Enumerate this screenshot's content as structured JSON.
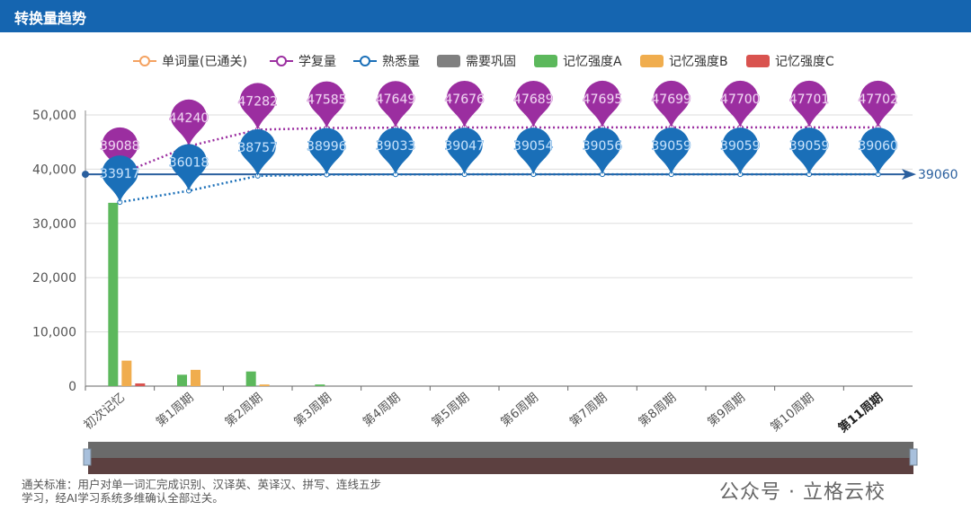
{
  "chart_data": {
    "type": "line-bar",
    "title": "转换量趋势",
    "categories": [
      "初次记忆",
      "第1周期",
      "第2周期",
      "第3周期",
      "第4周期",
      "第5周期",
      "第6周期",
      "第7周期",
      "第8周期",
      "第9周期",
      "第10周期",
      "第11周期"
    ],
    "series": [
      {
        "name": "单词量(已通关)",
        "kind": "line",
        "color": "#f4a261",
        "values": [
          null,
          null,
          null,
          null,
          null,
          null,
          null,
          null,
          null,
          null,
          null,
          null
        ]
      },
      {
        "name": "学复量",
        "kind": "line",
        "color": "#9b2ea0",
        "pins": true,
        "values": [
          39088,
          44240,
          47282,
          47585,
          47649,
          47676,
          47689,
          47695,
          47699,
          47700,
          47701,
          47702
        ]
      },
      {
        "name": "熟悉量",
        "kind": "line",
        "color": "#1a6fb8",
        "pins": true,
        "values": [
          33917,
          36018,
          38757,
          38996,
          39033,
          39047,
          39054,
          39056,
          39059,
          39059,
          39059,
          39060
        ]
      },
      {
        "name": "需要巩固",
        "kind": "bar",
        "color": "#808080",
        "values": [
          0,
          0,
          0,
          0,
          0,
          0,
          0,
          0,
          0,
          0,
          0,
          0
        ]
      },
      {
        "name": "记忆强度A",
        "kind": "bar",
        "color": "#5cb85c",
        "values": [
          33800,
          2100,
          2700,
          300,
          0,
          0,
          0,
          0,
          0,
          0,
          0,
          0
        ]
      },
      {
        "name": "记忆强度B",
        "kind": "bar",
        "color": "#f0ad4e",
        "values": [
          4700,
          3000,
          300,
          0,
          0,
          0,
          0,
          0,
          0,
          0,
          0,
          0
        ]
      },
      {
        "name": "记忆强度C",
        "kind": "bar",
        "color": "#d9534f",
        "values": [
          500,
          0,
          0,
          0,
          0,
          0,
          0,
          0,
          0,
          0,
          0,
          0
        ]
      }
    ],
    "markline": {
      "value": 39060,
      "color": "#2a5f9e"
    },
    "ylim": [
      0,
      50000
    ],
    "yticks": [
      0,
      {
        "value": 10000,
        "label": "10,000"
      },
      {
        "value": 20000,
        "label": "20,000"
      },
      {
        "value": 30000,
        "label": "30,000"
      },
      {
        "value": 40000,
        "label": "40,000"
      },
      {
        "value": 50000,
        "label": "50,000"
      }
    ],
    "grid": true,
    "note": "通关标准：用户对单一词汇完成识别、汉译英、英译汉、拼写、连线五步学习，经AI学习系统多维确认全部过关。",
    "watermark": "公众号 · 立格云校"
  }
}
